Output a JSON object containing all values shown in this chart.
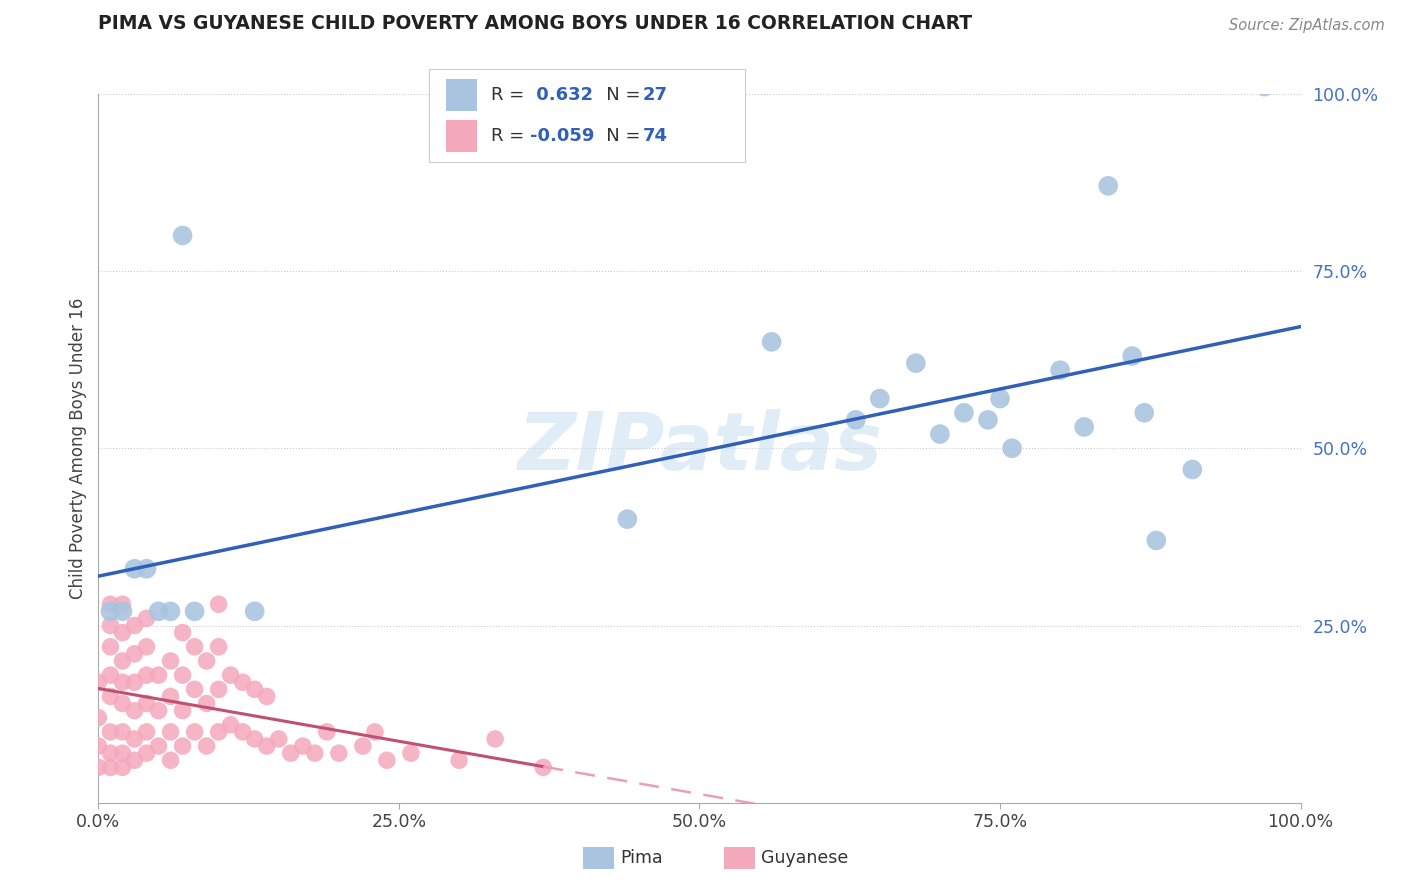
{
  "title": "PIMA VS GUYANESE CHILD POVERTY AMONG BOYS UNDER 16 CORRELATION CHART",
  "source_text": "Source: ZipAtlas.com",
  "ylabel": "Child Poverty Among Boys Under 16",
  "pima_R": "0.632",
  "pima_N": "27",
  "guyanese_R": "-0.059",
  "guyanese_N": "74",
  "pima_scatter_color": "#a8c4e0",
  "guyanese_scatter_color": "#f4a8bc",
  "pima_line_color": "#3060b8",
  "guyanese_solid_color": "#c05070",
  "guyanese_dash_color": "#e8a0b8",
  "watermark_color": "#c8ddf0",
  "xlim": [
    0.0,
    1.0
  ],
  "ylim": [
    0.0,
    1.0
  ],
  "xticks": [
    0.0,
    0.25,
    0.5,
    0.75,
    1.0
  ],
  "yticks": [
    0.25,
    0.5,
    0.75,
    1.0
  ],
  "xticklabels": [
    "0.0%",
    "25.0%",
    "50.0%",
    "75.0%",
    "100.0%"
  ],
  "yright_ticklabels": [
    "25.0%",
    "50.0%",
    "75.0%",
    "100.0%"
  ],
  "pima_x": [
    0.01,
    0.02,
    0.03,
    0.04,
    0.05,
    0.06,
    0.07,
    0.08,
    0.13,
    0.44,
    0.56,
    0.63,
    0.65,
    0.68,
    0.7,
    0.72,
    0.74,
    0.75,
    0.76,
    0.8,
    0.82,
    0.84,
    0.86,
    0.87,
    0.88,
    0.91,
    0.97
  ],
  "pima_y": [
    0.27,
    0.27,
    0.33,
    0.33,
    0.27,
    0.27,
    0.8,
    0.27,
    0.27,
    0.4,
    0.65,
    0.54,
    0.57,
    0.62,
    0.52,
    0.55,
    0.54,
    0.57,
    0.5,
    0.61,
    0.53,
    0.87,
    0.63,
    0.55,
    0.37,
    0.47,
    1.01
  ],
  "guyanese_x": [
    0.0,
    0.0,
    0.0,
    0.0,
    0.01,
    0.01,
    0.01,
    0.01,
    0.01,
    0.01,
    0.01,
    0.01,
    0.02,
    0.02,
    0.02,
    0.02,
    0.02,
    0.02,
    0.02,
    0.02,
    0.03,
    0.03,
    0.03,
    0.03,
    0.03,
    0.03,
    0.04,
    0.04,
    0.04,
    0.04,
    0.04,
    0.04,
    0.05,
    0.05,
    0.05,
    0.06,
    0.06,
    0.06,
    0.06,
    0.07,
    0.07,
    0.07,
    0.07,
    0.08,
    0.08,
    0.08,
    0.09,
    0.09,
    0.09,
    0.1,
    0.1,
    0.1,
    0.1,
    0.11,
    0.11,
    0.12,
    0.12,
    0.13,
    0.13,
    0.14,
    0.14,
    0.15,
    0.16,
    0.17,
    0.18,
    0.19,
    0.2,
    0.22,
    0.23,
    0.24,
    0.26,
    0.3,
    0.33,
    0.37
  ],
  "guyanese_y": [
    0.05,
    0.08,
    0.12,
    0.17,
    0.05,
    0.07,
    0.1,
    0.15,
    0.18,
    0.22,
    0.25,
    0.28,
    0.05,
    0.07,
    0.1,
    0.14,
    0.17,
    0.2,
    0.24,
    0.28,
    0.06,
    0.09,
    0.13,
    0.17,
    0.21,
    0.25,
    0.07,
    0.1,
    0.14,
    0.18,
    0.22,
    0.26,
    0.08,
    0.13,
    0.18,
    0.06,
    0.1,
    0.15,
    0.2,
    0.08,
    0.13,
    0.18,
    0.24,
    0.1,
    0.16,
    0.22,
    0.08,
    0.14,
    0.2,
    0.1,
    0.16,
    0.22,
    0.28,
    0.11,
    0.18,
    0.1,
    0.17,
    0.09,
    0.16,
    0.08,
    0.15,
    0.09,
    0.07,
    0.08,
    0.07,
    0.1,
    0.07,
    0.08,
    0.1,
    0.06,
    0.07,
    0.06,
    0.09,
    0.05
  ]
}
